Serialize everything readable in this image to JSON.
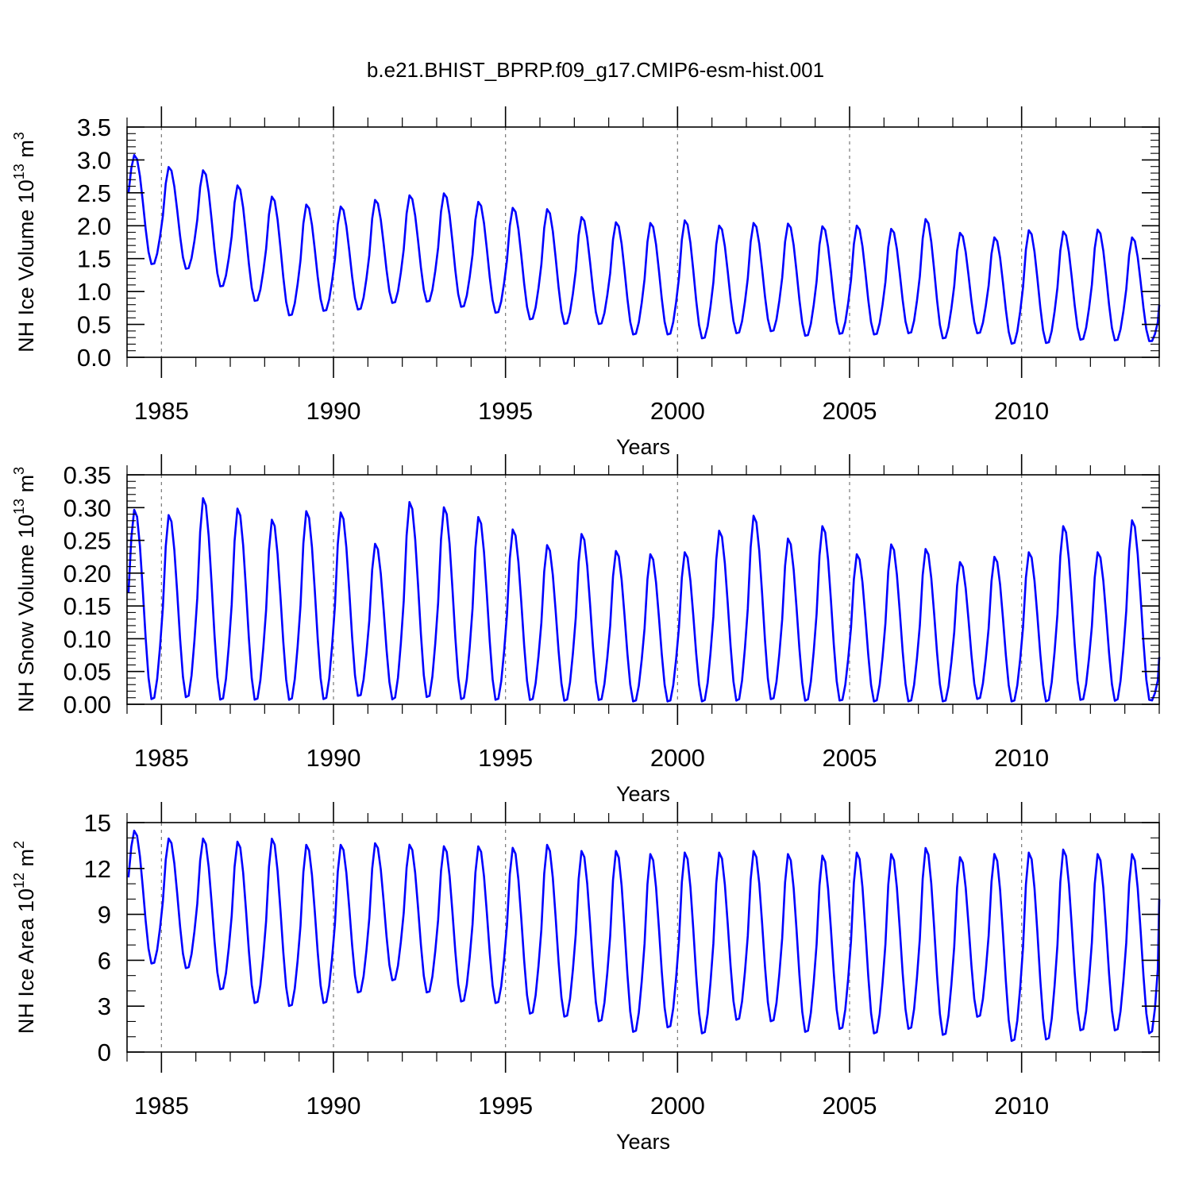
{
  "figure": {
    "title": "b.e21.BHIST_BPRP.f09_g17.CMIP6-esm-hist.001"
  },
  "chart_data": [
    {
      "type": "line",
      "title": "",
      "xlabel": "Years",
      "ylabel_text": "NH Ice Volume 10",
      "ylabel_exp": "13",
      "ylabel_unit": " m",
      "ylabel_unit_exp": "3",
      "xlim": [
        1984.0,
        2014.0
      ],
      "ylim": [
        0,
        3.5
      ],
      "xticks": [
        1985,
        1990,
        1995,
        2000,
        2005,
        2010
      ],
      "xtick_labels": [
        "1985",
        "1990",
        "1995",
        "2000",
        "2005",
        "2010"
      ],
      "yticks": [
        0,
        0.5,
        1.0,
        1.5,
        2.0,
        2.5,
        3.0,
        3.5
      ],
      "ytick_labels": [
        "0.0",
        "0.5",
        "1.0",
        "1.5",
        "2.0",
        "2.5",
        "3.0",
        "3.5"
      ],
      "grid": "dashed vertical at major x ticks",
      "series_color": "#0000ff",
      "start_year": 1984.0417,
      "annual_max": [
        3.08,
        2.9,
        2.85,
        2.62,
        2.45,
        2.33,
        2.3,
        2.4,
        2.47,
        2.5,
        2.37,
        2.28,
        2.26,
        2.14,
        2.06,
        2.05,
        2.09,
        2.01,
        2.05,
        2.04,
        2.0,
        2.01,
        1.96,
        2.11,
        1.9,
        1.83,
        1.94,
        1.92,
        1.95,
        1.83
      ],
      "annual_min": [
        1.4,
        1.33,
        1.06,
        0.84,
        0.62,
        0.69,
        0.71,
        0.81,
        0.83,
        0.75,
        0.66,
        0.56,
        0.49,
        0.49,
        0.33,
        0.33,
        0.27,
        0.35,
        0.38,
        0.31,
        0.34,
        0.33,
        0.35,
        0.27,
        0.35,
        0.19,
        0.2,
        0.25,
        0.24,
        0.23
      ],
      "end_value": 0.8
    },
    {
      "type": "line",
      "title": "",
      "xlabel": "Years",
      "ylabel_text": "NH Snow Volume 10",
      "ylabel_exp": "13",
      "ylabel_unit": " m",
      "ylabel_unit_exp": "3",
      "xlim": [
        1984.0,
        2014.0
      ],
      "ylim": [
        0,
        0.35
      ],
      "xticks": [
        1985,
        1990,
        1995,
        2000,
        2005,
        2010
      ],
      "xtick_labels": [
        "1985",
        "1990",
        "1995",
        "2000",
        "2005",
        "2010"
      ],
      "yticks": [
        0,
        0.05,
        0.1,
        0.15,
        0.2,
        0.25,
        0.3,
        0.35
      ],
      "ytick_labels": [
        "0.00",
        "0.05",
        "0.10",
        "0.15",
        "0.20",
        "0.25",
        "0.30",
        "0.35"
      ],
      "grid": "dashed vertical at major x ticks",
      "series_color": "#0000ff",
      "start_year": 1984.0417,
      "start_value": 0.17,
      "annual_max": [
        0.298,
        0.29,
        0.316,
        0.3,
        0.283,
        0.296,
        0.294,
        0.246,
        0.31,
        0.302,
        0.287,
        0.268,
        0.244,
        0.261,
        0.235,
        0.23,
        0.233,
        0.266,
        0.289,
        0.254,
        0.273,
        0.23,
        0.245,
        0.238,
        0.218,
        0.226,
        0.233,
        0.273,
        0.233,
        0.282
      ],
      "annual_min": [
        0.005,
        0.008,
        0.004,
        0.004,
        0.004,
        0.005,
        0.01,
        0.005,
        0.008,
        0.005,
        0.004,
        0.004,
        0.003,
        0.004,
        0.002,
        0.002,
        0.002,
        0.003,
        0.005,
        0.003,
        0.003,
        0.002,
        0.002,
        0.002,
        0.006,
        0.002,
        0.002,
        0.004,
        0.003,
        0.004
      ],
      "end_value": 0.072
    },
    {
      "type": "line",
      "title": "",
      "xlabel": "Years",
      "ylabel_text": "NH Ice Area 10",
      "ylabel_exp": "12",
      "ylabel_unit": " m",
      "ylabel_unit_exp": "2",
      "xlim": [
        1984.0,
        2014.0
      ],
      "ylim": [
        0,
        15
      ],
      "xticks": [
        1985,
        1990,
        1995,
        2000,
        2005,
        2010
      ],
      "xtick_labels": [
        "1985",
        "1990",
        "1995",
        "2000",
        "2005",
        "2010"
      ],
      "yticks": [
        0,
        3,
        6,
        9,
        12,
        15
      ],
      "ytick_labels": [
        "0",
        "3",
        "6",
        "9",
        "12",
        "15"
      ],
      "grid": "dashed vertical at major x ticks",
      "series_color": "#0000ff",
      "start_year": 1984.0417,
      "annual_max": [
        14.5,
        14.0,
        14.0,
        13.8,
        14.0,
        13.6,
        13.6,
        13.7,
        13.6,
        13.5,
        13.5,
        13.4,
        13.6,
        13.2,
        13.2,
        13.0,
        13.1,
        13.1,
        13.2,
        13.0,
        12.9,
        13.1,
        13.0,
        13.4,
        12.8,
        13.0,
        13.1,
        13.3,
        13.0,
        13.0
      ],
      "annual_min": [
        5.7,
        5.4,
        4.0,
        3.1,
        2.9,
        3.1,
        3.8,
        4.6,
        3.8,
        3.2,
        3.1,
        2.4,
        2.2,
        1.9,
        1.2,
        1.5,
        1.1,
        2.0,
        1.9,
        1.2,
        1.4,
        1.1,
        1.4,
        1.0,
        2.2,
        0.6,
        0.7,
        1.3,
        1.3,
        1.1
      ],
      "end_value": 10.0
    }
  ]
}
